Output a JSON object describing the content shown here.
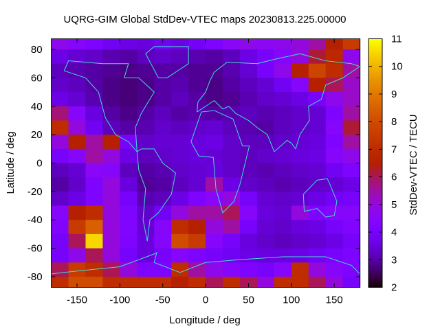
{
  "chart_data": {
    "type": "heatmap",
    "title": "UQRG-GIM Global StdDev-VTEC maps 20230813.225.00000",
    "xlabel": "Longitude / deg",
    "ylabel": "Latitude / deg",
    "colorbar_label": "StdDev-VTEC / TECU",
    "xlim": [
      -180,
      180
    ],
    "ylim": [
      -87.5,
      87.5
    ],
    "xticks": [
      -150,
      -100,
      -50,
      0,
      50,
      100,
      150
    ],
    "yticks": [
      -80,
      -60,
      -40,
      -20,
      0,
      20,
      40,
      60,
      80
    ],
    "cbrange": [
      2,
      11
    ],
    "cbticks": [
      2,
      3,
      4,
      5,
      6,
      7,
      8,
      9,
      10,
      11
    ],
    "palette": "black-purple-red-yellow",
    "coastline_color": "#40e0d0",
    "lon_centers": [
      -170,
      -150,
      -130,
      -110,
      -90,
      -70,
      -50,
      -30,
      -10,
      10,
      30,
      50,
      70,
      90,
      110,
      130,
      150,
      170
    ],
    "lat_centers": [
      85,
      75,
      65,
      55,
      45,
      35,
      25,
      15,
      5,
      -5,
      -15,
      -25,
      -35,
      -45,
      -55,
      -65,
      -75,
      -85
    ],
    "values": [
      [
        4.8,
        4.5,
        4.2,
        3.8,
        3.6,
        3.5,
        3.8,
        3.6,
        3.9,
        4.2,
        4.6,
        4.8,
        4.7,
        4.8,
        5.0,
        5.5,
        6.5,
        7.5
      ],
      [
        3.6,
        3.4,
        3.3,
        3.1,
        3.0,
        3.2,
        3.3,
        3.2,
        3.1,
        3.0,
        3.2,
        3.6,
        4.0,
        4.5,
        5.0,
        6.2,
        6.8,
        4.8
      ],
      [
        3.2,
        3.1,
        3.0,
        2.9,
        2.8,
        2.9,
        3.0,
        3.0,
        2.9,
        2.9,
        3.1,
        3.4,
        4.0,
        4.8,
        6.5,
        7.8,
        7.0,
        5.5
      ],
      [
        3.3,
        3.2,
        3.0,
        2.8,
        2.7,
        2.8,
        3.0,
        3.1,
        2.9,
        2.8,
        3.0,
        3.2,
        3.4,
        3.8,
        4.5,
        6.5,
        6.0,
        5.2
      ],
      [
        3.6,
        3.4,
        3.1,
        2.8,
        2.7,
        2.8,
        3.0,
        3.2,
        3.0,
        2.8,
        2.9,
        3.1,
        3.3,
        3.4,
        3.6,
        4.0,
        4.8,
        5.2
      ],
      [
        5.8,
        4.5,
        3.5,
        3.0,
        2.8,
        3.0,
        3.2,
        3.0,
        3.1,
        3.0,
        3.1,
        3.2,
        3.1,
        3.2,
        3.3,
        3.4,
        4.2,
        5.5
      ],
      [
        7.0,
        5.0,
        3.8,
        3.2,
        3.0,
        3.1,
        3.3,
        3.2,
        3.3,
        3.4,
        3.2,
        3.1,
        3.0,
        3.2,
        3.3,
        3.4,
        4.5,
        6.2
      ],
      [
        5.0,
        6.5,
        5.5,
        6.5,
        4.0,
        3.3,
        3.4,
        3.4,
        3.5,
        3.6,
        3.3,
        3.2,
        3.2,
        3.3,
        3.4,
        3.5,
        4.2,
        5.5
      ],
      [
        4.0,
        4.5,
        5.5,
        5.0,
        3.6,
        3.2,
        3.3,
        3.4,
        3.5,
        3.4,
        3.3,
        3.2,
        3.3,
        3.4,
        3.5,
        3.6,
        4.5,
        4.8
      ],
      [
        3.2,
        3.4,
        4.6,
        4.5,
        3.2,
        3.0,
        3.1,
        3.3,
        3.4,
        3.5,
        3.3,
        3.2,
        3.1,
        3.2,
        3.3,
        3.4,
        3.8,
        4.2
      ],
      [
        3.0,
        3.3,
        4.2,
        5.0,
        3.5,
        2.9,
        3.0,
        3.2,
        3.4,
        5.5,
        3.6,
        3.3,
        3.2,
        3.1,
        3.2,
        3.3,
        3.4,
        3.6
      ],
      [
        3.3,
        3.6,
        4.2,
        5.0,
        4.0,
        3.1,
        3.2,
        3.6,
        4.2,
        4.6,
        5.0,
        4.0,
        3.4,
        3.3,
        3.4,
        3.6,
        3.8,
        4.0
      ],
      [
        4.5,
        6.5,
        7.0,
        5.0,
        4.2,
        3.3,
        3.8,
        5.0,
        5.5,
        5.5,
        6.0,
        4.5,
        3.5,
        3.4,
        5.0,
        4.2,
        4.5,
        4.5
      ],
      [
        4.3,
        7.5,
        8.5,
        5.0,
        4.3,
        3.4,
        4.5,
        7.0,
        6.5,
        5.0,
        5.5,
        4.0,
        3.4,
        3.3,
        3.5,
        3.6,
        4.0,
        4.3
      ],
      [
        4.0,
        6.0,
        10.5,
        5.0,
        4.2,
        3.5,
        4.5,
        8.0,
        7.5,
        4.5,
        4.0,
        3.5,
        3.3,
        3.2,
        3.3,
        3.4,
        3.6,
        4.0
      ],
      [
        4.0,
        4.8,
        6.0,
        5.0,
        4.0,
        3.5,
        4.0,
        4.5,
        4.2,
        4.0,
        3.8,
        3.6,
        3.5,
        3.5,
        3.6,
        3.8,
        4.0,
        4.2
      ],
      [
        6.0,
        7.5,
        7.0,
        6.0,
        5.0,
        4.2,
        4.2,
        7.0,
        5.5,
        4.8,
        4.5,
        4.2,
        4.0,
        4.5,
        7.0,
        5.0,
        4.5,
        4.2
      ],
      [
        7.0,
        8.0,
        8.0,
        7.0,
        7.0,
        7.0,
        7.0,
        6.5,
        7.0,
        6.0,
        7.0,
        6.0,
        5.0,
        7.0,
        7.0,
        6.0,
        5.0,
        4.0
      ]
    ],
    "coastlines": [
      [
        [
          -165,
          65
        ],
        [
          -140,
          60
        ],
        [
          -125,
          50
        ],
        [
          -117,
          32
        ],
        [
          -105,
          20
        ],
        [
          -90,
          15
        ],
        [
          -80,
          8
        ],
        [
          -82,
          25
        ],
        [
          -75,
          35
        ],
        [
          -65,
          45
        ],
        [
          -60,
          50
        ],
        [
          -78,
          60
        ],
        [
          -95,
          60
        ],
        [
          -90,
          70
        ],
        [
          -120,
          70
        ],
        [
          -160,
          72
        ],
        [
          -165,
          65
        ]
      ],
      [
        [
          -80,
          8
        ],
        [
          -78,
          -5
        ],
        [
          -70,
          -18
        ],
        [
          -73,
          -40
        ],
        [
          -68,
          -55
        ],
        [
          -65,
          -40
        ],
        [
          -55,
          -35
        ],
        [
          -40,
          -22
        ],
        [
          -35,
          -7
        ],
        [
          -50,
          0
        ],
        [
          -60,
          10
        ],
        [
          -75,
          10
        ],
        [
          -80,
          8
        ]
      ],
      [
        [
          -55,
          60
        ],
        [
          -45,
          60
        ],
        [
          -20,
          70
        ],
        [
          -20,
          82
        ],
        [
          -60,
          82
        ],
        [
          -70,
          77
        ],
        [
          -55,
          60
        ]
      ],
      [
        [
          -17,
          15
        ],
        [
          -5,
          36
        ],
        [
          10,
          37
        ],
        [
          32,
          31
        ],
        [
          43,
          12
        ],
        [
          51,
          12
        ],
        [
          40,
          -15
        ],
        [
          33,
          -27
        ],
        [
          20,
          -35
        ],
        [
          12,
          -18
        ],
        [
          9,
          4
        ],
        [
          -8,
          5
        ],
        [
          -17,
          15
        ]
      ],
      [
        [
          -10,
          36
        ],
        [
          -9,
          43
        ],
        [
          0,
          50
        ],
        [
          5,
          58
        ],
        [
          10,
          64
        ],
        [
          25,
          71
        ],
        [
          60,
          70
        ],
        [
          80,
          73
        ],
        [
          110,
          77
        ],
        [
          140,
          72
        ],
        [
          170,
          70
        ],
        [
          180,
          68
        ],
        [
          160,
          60
        ],
        [
          140,
          55
        ],
        [
          135,
          45
        ],
        [
          120,
          40
        ],
        [
          121,
          30
        ],
        [
          110,
          20
        ],
        [
          105,
          10
        ],
        [
          100,
          14
        ],
        [
          95,
          16
        ],
        [
          80,
          8
        ],
        [
          72,
          20
        ],
        [
          60,
          25
        ],
        [
          50,
          30
        ],
        [
          35,
          35
        ],
        [
          27,
          40
        ],
        [
          20,
          38
        ],
        [
          10,
          44
        ],
        [
          0,
          40
        ],
        [
          -10,
          36
        ]
      ],
      [
        [
          114,
          -22
        ],
        [
          130,
          -12
        ],
        [
          142,
          -11
        ],
        [
          145,
          -15
        ],
        [
          153,
          -27
        ],
        [
          150,
          -37
        ],
        [
          140,
          -38
        ],
        [
          130,
          -32
        ],
        [
          115,
          -34
        ],
        [
          114,
          -22
        ]
      ],
      [
        [
          -180,
          -78
        ],
        [
          -150,
          -76
        ],
        [
          -100,
          -73
        ],
        [
          -60,
          -64
        ],
        [
          -57,
          -63
        ],
        [
          -60,
          -70
        ],
        [
          -30,
          -77
        ],
        [
          0,
          -70
        ],
        [
          40,
          -68
        ],
        [
          90,
          -66
        ],
        [
          140,
          -66
        ],
        [
          170,
          -72
        ],
        [
          180,
          -78
        ]
      ]
    ]
  }
}
